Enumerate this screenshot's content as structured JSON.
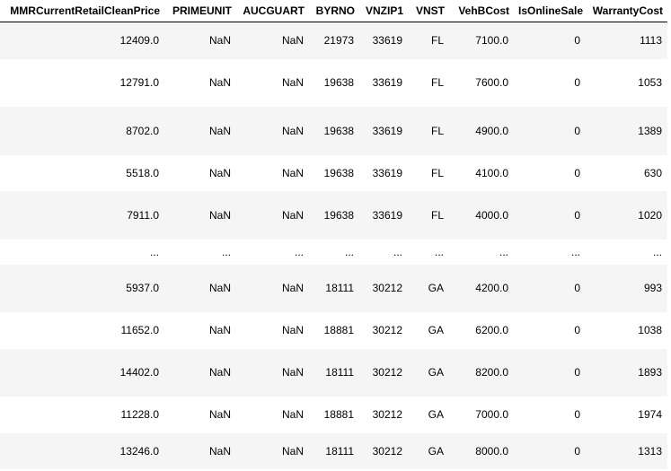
{
  "table": {
    "columns": [
      "MMRCurrentRetailCleanPrice",
      "PRIMEUNIT",
      "AUCGUART",
      "BYRNO",
      "VNZIP1",
      "VNST",
      "VehBCost",
      "IsOnlineSale",
      "WarrantyCost"
    ],
    "rows": [
      [
        "12409.0",
        "NaN",
        "NaN",
        "21973",
        "33619",
        "FL",
        "7100.0",
        "0",
        "1113"
      ],
      [
        "12791.0",
        "NaN",
        "NaN",
        "19638",
        "33619",
        "FL",
        "7600.0",
        "0",
        "1053"
      ],
      [
        "8702.0",
        "NaN",
        "NaN",
        "19638",
        "33619",
        "FL",
        "4900.0",
        "0",
        "1389"
      ],
      [
        "5518.0",
        "NaN",
        "NaN",
        "19638",
        "33619",
        "FL",
        "4100.0",
        "0",
        "630"
      ],
      [
        "7911.0",
        "NaN",
        "NaN",
        "19638",
        "33619",
        "FL",
        "4000.0",
        "0",
        "1020"
      ],
      [
        "...",
        "...",
        "...",
        "...",
        "...",
        "...",
        "...",
        "...",
        "..."
      ],
      [
        "5937.0",
        "NaN",
        "NaN",
        "18111",
        "30212",
        "GA",
        "4200.0",
        "0",
        "993"
      ],
      [
        "11652.0",
        "NaN",
        "NaN",
        "18881",
        "30212",
        "GA",
        "6200.0",
        "0",
        "1038"
      ],
      [
        "14402.0",
        "NaN",
        "NaN",
        "18111",
        "30212",
        "GA",
        "8200.0",
        "0",
        "1893"
      ],
      [
        "11228.0",
        "NaN",
        "NaN",
        "18881",
        "30212",
        "GA",
        "7000.0",
        "0",
        "1974"
      ],
      [
        "13246.0",
        "NaN",
        "NaN",
        "18111",
        "30212",
        "GA",
        "8000.0",
        "0",
        "1313"
      ]
    ]
  }
}
